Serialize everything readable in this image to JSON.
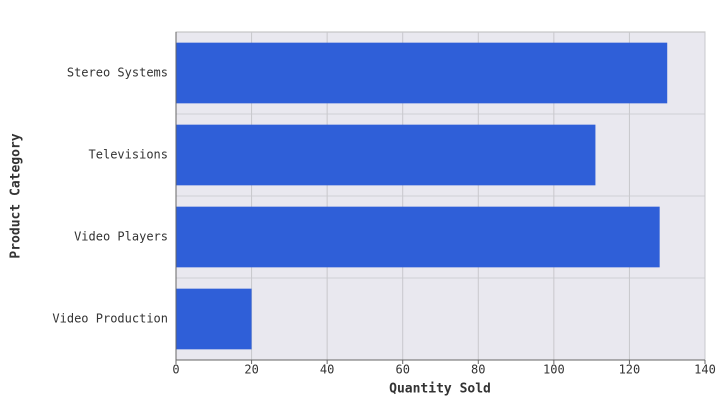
{
  "chart_data": {
    "type": "bar",
    "orientation": "horizontal",
    "x_label": "Quantity Sold",
    "y_label": "Product Category",
    "categories": [
      "Stereo Systems",
      "Televisions",
      "Video Players",
      "Video Production"
    ],
    "values": [
      130,
      111,
      128,
      20
    ],
    "color": "#2f5fd8",
    "xlim": [
      0,
      140
    ],
    "xticks": [
      0,
      20,
      40,
      60,
      80,
      100,
      120,
      140
    ],
    "grid": true
  }
}
